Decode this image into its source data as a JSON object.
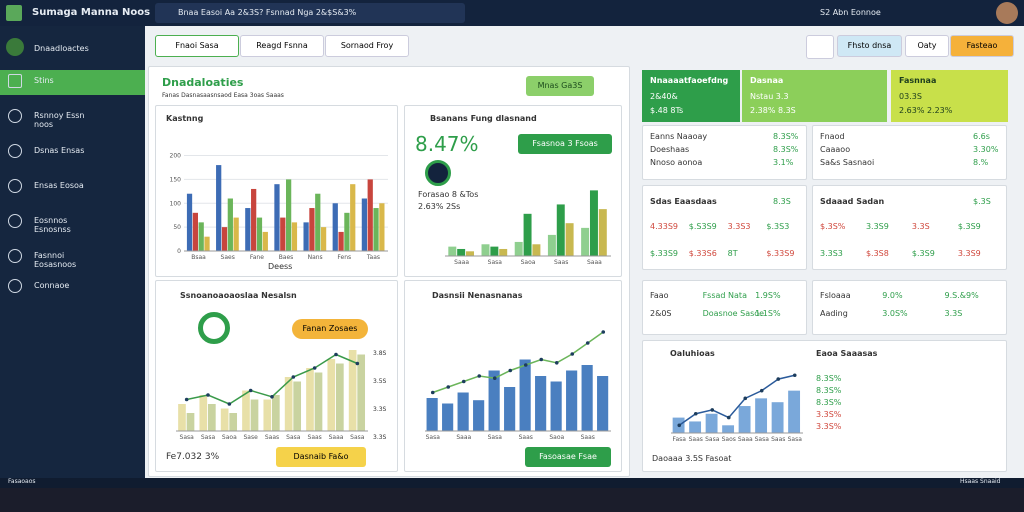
{
  "app": {
    "title": "Sumaga Manna Noos",
    "search": "Bnaa Easoi  Aa 2&3S?  Fsnnad Nga 2&$S&3%",
    "user": "S2 Abn  Eonnoe"
  },
  "sidebar": {
    "header": "Dnaadloactes",
    "items": [
      "Stins",
      "Rsnnoy Essn noos",
      "Dsnas Ensas",
      "Ensas Eosoa",
      "Eosnnos Esnosnss",
      "Fasnnoi Eosasnoos",
      "Connaoe"
    ]
  },
  "tabs": [
    "Fnaoi Sasa",
    "Reagd Fsnna",
    "Sornaod Froy"
  ],
  "actions": [
    "Fhsto dnsa",
    "Oaty",
    "Fasteao"
  ],
  "main": {
    "title": "Dnadaloaties",
    "subtitle": "Fanas Dasnasaasnsaod Easa 3oas Saaas",
    "button": "Mnas Ga3S"
  },
  "panel_a": {
    "title": "Kastnng",
    "x_label": "Deess",
    "chart": {
      "type": "bar",
      "categories": [
        "Bsaa",
        "Saes",
        "Fane",
        "Baes",
        "Nans",
        "Fens",
        "Taas"
      ],
      "ylim": [
        0,
        220
      ],
      "yticks": [
        0,
        50,
        100,
        150,
        200
      ],
      "series": [
        {
          "color": "#3d6cb5",
          "values": [
            120,
            180,
            90,
            140,
            60,
            100,
            110
          ]
        },
        {
          "color": "#c8453d",
          "values": [
            80,
            50,
            130,
            70,
            90,
            40,
            150
          ]
        },
        {
          "color": "#6bb55a",
          "values": [
            60,
            110,
            70,
            150,
            120,
            80,
            90
          ]
        },
        {
          "color": "#d9b84a",
          "values": [
            30,
            70,
            40,
            60,
            50,
            140,
            100
          ]
        }
      ]
    }
  },
  "panel_b": {
    "title": "Bsanans Fung dlasnand",
    "big": "8.47%",
    "button": "Fsasnoa 3 Fsoas",
    "note1": "Forasao 8 &Tos",
    "note2": "2.63% 2Ss",
    "chart": {
      "type": "bar",
      "categories": [
        "Saaa",
        "Sasa",
        "Saoa",
        "Saas",
        "Saaa"
      ],
      "ylim": [
        0,
        160
      ],
      "series": [
        {
          "color": "#8fcf8f",
          "values": [
            20,
            25,
            30,
            45,
            60
          ]
        },
        {
          "color": "#2e9e4a",
          "values": [
            15,
            20,
            90,
            110,
            140
          ]
        },
        {
          "color": "#c8b850",
          "values": [
            10,
            15,
            25,
            70,
            100
          ]
        }
      ]
    }
  },
  "panel_c": {
    "title": "Ssnoanoaoaoslaa Nesalsn",
    "pill": "Fanan Zosaes",
    "footer": "Fe7.032 3%",
    "button": "Dasnaib Fa&o",
    "axis_labels": [
      "3.8S",
      "3.5S",
      "3.3S",
      "3.3S"
    ],
    "chart": {
      "type": "bar",
      "categories": [
        "Sasa",
        "Sasa",
        "Saoa",
        "Sase",
        "Saas",
        "Sasa",
        "Saas",
        "Saaa",
        "Sasa"
      ],
      "ylim": [
        0,
        100
      ],
      "series": [
        {
          "color": "#e8e0a8",
          "values": [
            30,
            40,
            25,
            45,
            35,
            60,
            70,
            80,
            90
          ]
        },
        {
          "color": "#c9d3a0",
          "values": [
            20,
            30,
            20,
            35,
            40,
            55,
            65,
            75,
            85
          ]
        },
        {
          "type": "line",
          "color": "#3a9a4a",
          "values": [
            35,
            40,
            30,
            45,
            38,
            60,
            70,
            85,
            75
          ]
        }
      ]
    }
  },
  "panel_d": {
    "title": "Dasnsii Nenasnanas",
    "button": "Fasoasae Fsae",
    "chart": {
      "type": "bar",
      "categories": [
        "Sasa",
        null,
        "Saaa",
        null,
        "Sasa",
        null,
        "Saas",
        null,
        "Saoa",
        null,
        "Saas",
        null
      ],
      "ylim": [
        0,
        100
      ],
      "series": [
        {
          "color": "#4a7fc0",
          "values": [
            30,
            25,
            35,
            28,
            55,
            40,
            65,
            50,
            45,
            55,
            60,
            50
          ]
        },
        {
          "type": "line",
          "color": "#6bb55a",
          "values": [
            35,
            40,
            45,
            50,
            48,
            55,
            60,
            65,
            62,
            70,
            80,
            90
          ]
        }
      ]
    }
  },
  "kpis": [
    {
      "title": "Nnaaaatfaoefdng",
      "a": "2&40&",
      "b": "$.48 8Ts"
    },
    {
      "title": "Dasnaa",
      "a": "Nstau 3.3",
      "b": "2.38% 8.3S"
    },
    {
      "title": "Fasnnaa",
      "a": "03.3S",
      "b": "2.63% 2.23%"
    }
  ],
  "lists": [
    [
      [
        "Eanns Naaoay",
        "8.3S%"
      ],
      [
        "Doeshaas",
        "8.3S%"
      ],
      [
        "Nnoso aonoa",
        "3.1%"
      ]
    ],
    [
      [
        "Fnaod",
        "6.6s"
      ],
      [
        "Caaaoo",
        "3.30%"
      ],
      [
        "Sa&s Sasnaoi",
        "8.%"
      ]
    ]
  ],
  "tables": [
    {
      "title": "Sdas Eaasdaas",
      "head": "8.3S",
      "rows": [
        [
          "4.33S9",
          "$.S3S9",
          "3.3S3",
          "$.3S3"
        ],
        [
          "$.33S9",
          "$.33S6",
          "8T",
          "$.33S9"
        ]
      ]
    },
    {
      "title": "Sdaaad Sadan",
      "head": "$.3S",
      "rows": [
        [
          "$.3S%",
          "3.3S9",
          "3.3S",
          "$.3S9"
        ],
        [
          "3.3S3",
          "$.3S8",
          "$.3S9",
          "3.3S9"
        ]
      ]
    }
  ],
  "stats": [
    [
      [
        "Faao",
        "Fssad Nata",
        "1.9S%"
      ],
      [
        "2&0S",
        "Doasnoe Sasoe",
        "1.1S%"
      ]
    ],
    [
      [
        "Fsloaaa",
        "9.0%",
        "9.S.&9%"
      ],
      [
        "Aading",
        "3.0S%",
        "3.3S"
      ]
    ]
  ],
  "panel_e": {
    "title": "Oaluhioas",
    "side_title": "Eaoa Saaasas",
    "side_values": [
      "8.3S%",
      "8.3S%",
      "8.3S%",
      "3.3S%",
      "3.3S%"
    ],
    "footer": "Daoaaa 3.5S Fasoat",
    "chart": {
      "type": "bar",
      "categories": [
        "Fasa",
        "Saas",
        "Sasa",
        "Saos",
        "Saaa",
        "Sasa",
        "Saas",
        "Sasa"
      ],
      "ylim": [
        0,
        100
      ],
      "series": [
        {
          "color": "#7aa8da",
          "values": [
            20,
            15,
            25,
            10,
            35,
            45,
            40,
            55
          ]
        },
        {
          "type": "line",
          "color": "#2a5a9a",
          "values": [
            10,
            25,
            30,
            20,
            45,
            55,
            70,
            75
          ]
        }
      ]
    }
  },
  "status": {
    "left": "Fasaoaos",
    "right": "Hsaas Snaaid"
  }
}
